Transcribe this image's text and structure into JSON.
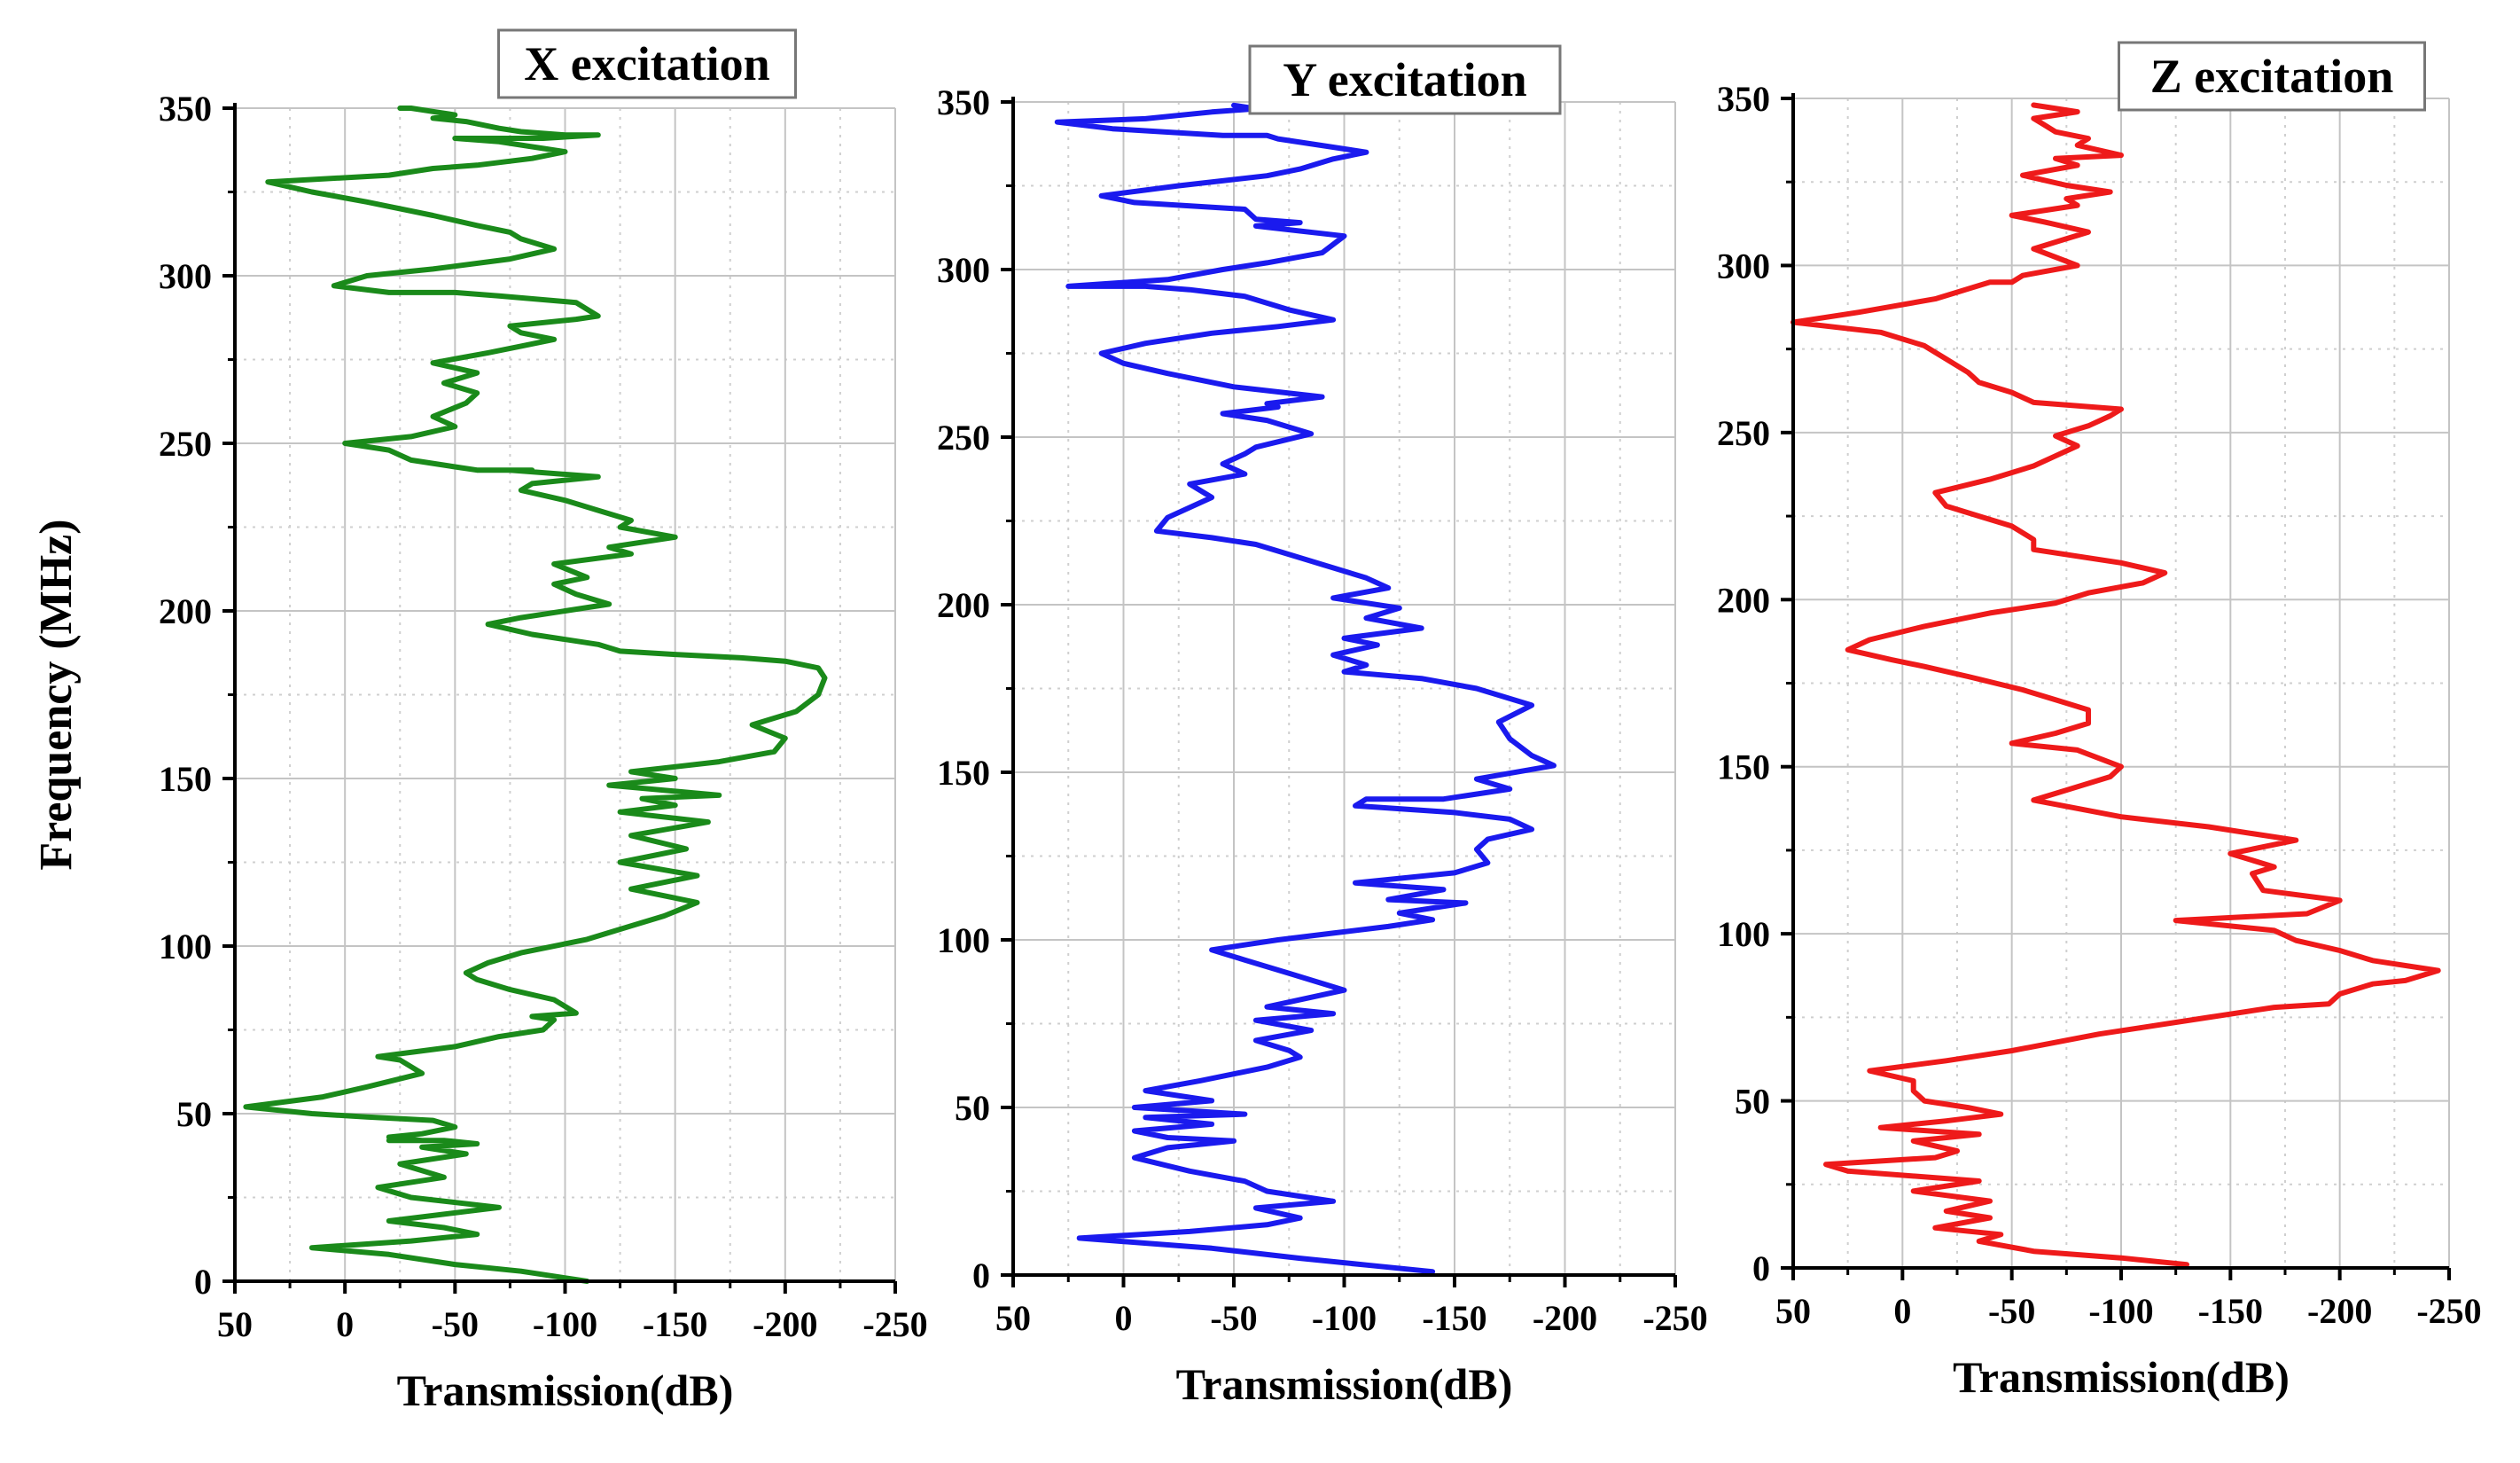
{
  "figure": {
    "ylabel": "Frequency (MHz)"
  },
  "chart_data": [
    {
      "type": "line",
      "title": "X excitation",
      "xlabel": "Transmission(dB)",
      "ylabel": "Frequency (MHz)",
      "color": "#1a8a1a",
      "xlim": [
        50,
        -250
      ],
      "ylim": [
        0,
        350
      ],
      "xticks": [
        50,
        0,
        -50,
        -100,
        -150,
        -200,
        -250
      ],
      "yticks": [
        0,
        50,
        100,
        150,
        200,
        250,
        300,
        350
      ],
      "grid": true,
      "series": [
        {
          "name": "X excitation",
          "x": [
            -110,
            -80,
            -50,
            -20,
            15,
            -30,
            -60,
            -45,
            -20,
            -70,
            -30,
            -15,
            -45,
            -25,
            -55,
            -35,
            -60,
            -45,
            -20,
            -35,
            -20,
            -35,
            -50,
            -40,
            -10,
            15,
            45,
            10,
            -10,
            -35,
            -25,
            -15,
            -50,
            -70,
            -90,
            -95,
            -85,
            -105,
            -95,
            -75,
            -60,
            -55,
            -65,
            -80,
            -110,
            -130,
            -145,
            -160,
            -130,
            -160,
            -125,
            -155,
            -130,
            -165,
            -125,
            -150,
            -135,
            -170,
            -120,
            -150,
            -130,
            -170,
            -195,
            -200,
            -185,
            -205,
            -215,
            -218,
            -215,
            -200,
            -180,
            -150,
            -125,
            -115,
            -85,
            -65,
            -80,
            -100,
            -120,
            -105,
            -95,
            -110,
            -95,
            -130,
            -120,
            -150,
            -125,
            -130,
            -115,
            -100,
            -80,
            -85,
            -115,
            -75,
            -85,
            -60,
            -50,
            -30,
            -20,
            0,
            -30,
            -50,
            -40,
            -55,
            -60,
            -45,
            -60,
            -40,
            -65,
            -80,
            -95,
            -80,
            -75,
            -105,
            -115,
            -105,
            -70,
            -50,
            -40,
            -20,
            5,
            -10,
            -40,
            -75,
            -95,
            -80,
            -75,
            -60,
            -40,
            -10,
            15,
            35,
            -20,
            -40,
            -60,
            -85,
            -100,
            -90,
            -70,
            -50,
            -80,
            -90,
            -115,
            -100,
            -80,
            -70,
            -55,
            -40,
            -50,
            -40,
            -30,
            -25
          ],
          "y": [
            0,
            3,
            5,
            8,
            10,
            12,
            14,
            16,
            18,
            22,
            25,
            28,
            31,
            35,
            38,
            40,
            41,
            42,
            42,
            42,
            43,
            44,
            46,
            48,
            49,
            50,
            52,
            55,
            58,
            62,
            66,
            67,
            70,
            73,
            75,
            78,
            79,
            80,
            84,
            87,
            90,
            92,
            95,
            98,
            102,
            106,
            109,
            113,
            117,
            121,
            125,
            129,
            133,
            137,
            140,
            142,
            144,
            145,
            148,
            150,
            152,
            155,
            158,
            162,
            166,
            170,
            175,
            180,
            183,
            185,
            186,
            187,
            188,
            190,
            193,
            196,
            198,
            200,
            202,
            205,
            208,
            210,
            214,
            217,
            219,
            222,
            225,
            227,
            230,
            233,
            236,
            238,
            240,
            242,
            242,
            242,
            243,
            245,
            248,
            250,
            252,
            255,
            258,
            262,
            265,
            268,
            271,
            274,
            277,
            279,
            281,
            283,
            285,
            287,
            288,
            292,
            294,
            295,
            295,
            295,
            297,
            300,
            302,
            305,
            308,
            311,
            313,
            315,
            318,
            322,
            325,
            328,
            330,
            332,
            333,
            335,
            337,
            338,
            340,
            341,
            341,
            341,
            342,
            342,
            343,
            344,
            346,
            347,
            348,
            349,
            350,
            350
          ]
        }
      ]
    },
    {
      "type": "line",
      "title": "Y excitation",
      "xlabel": "Transmission(dB)",
      "ylabel": "Frequency (MHz)",
      "color": "#1a1aee",
      "xlim": [
        50,
        -250
      ],
      "ylim": [
        0,
        350
      ],
      "xticks": [
        50,
        0,
        -50,
        -100,
        -150,
        -200,
        -250
      ],
      "yticks": [
        0,
        50,
        100,
        150,
        200,
        250,
        300,
        350
      ],
      "grid": true,
      "series": [
        {
          "name": "Y excitation",
          "x": [
            -140,
            -110,
            -80,
            -40,
            20,
            -30,
            -65,
            -80,
            -60,
            -95,
            -65,
            -55,
            -30,
            -5,
            -20,
            -50,
            -20,
            -5,
            -40,
            -10,
            -55,
            -5,
            -40,
            -10,
            -35,
            -65,
            -80,
            -75,
            -60,
            -85,
            -60,
            -95,
            -65,
            -100,
            -75,
            -55,
            -45,
            -40,
            -70,
            -95,
            -120,
            -140,
            -125,
            -155,
            -120,
            -145,
            -105,
            -150,
            -165,
            -160,
            -165,
            -185,
            -175,
            -150,
            -105,
            -110,
            -145,
            -175,
            -160,
            -195,
            -185,
            -175,
            -170,
            -185,
            -160,
            -135,
            -100,
            -110,
            -95,
            -115,
            -100,
            -135,
            -110,
            -125,
            -95,
            -120,
            -110,
            -90,
            -70,
            -60,
            -40,
            -15,
            -20,
            -40,
            -30,
            -55,
            -45,
            -55,
            -60,
            -85,
            -65,
            -45,
            -70,
            -65,
            -90,
            -50,
            -20,
            0,
            10,
            -10,
            -40,
            -70,
            -95,
            -75,
            -55,
            -30,
            -10,
            25,
            -20,
            -45,
            -65,
            -90,
            -100,
            -60,
            -80,
            -60,
            -55,
            -5,
            10,
            -25,
            -65,
            -80,
            -95,
            -110,
            -90,
            -70,
            -65,
            -45,
            -20,
            5,
            30,
            -10,
            -40,
            -60,
            -50
          ],
          "y": [
            1,
            3,
            5,
            8,
            11,
            13,
            15,
            17,
            20,
            22,
            25,
            28,
            31,
            35,
            38,
            40,
            41,
            43,
            45,
            47,
            48,
            50,
            52,
            55,
            58,
            62,
            65,
            67,
            70,
            73,
            76,
            78,
            80,
            85,
            90,
            94,
            96,
            97,
            100,
            102,
            104,
            106,
            108,
            111,
            112,
            115,
            117,
            120,
            123,
            127,
            130,
            133,
            136,
            138,
            140,
            142,
            142,
            145,
            148,
            152,
            155,
            160,
            165,
            170,
            175,
            178,
            180,
            182,
            185,
            188,
            190,
            193,
            196,
            199,
            202,
            205,
            208,
            212,
            216,
            218,
            220,
            222,
            226,
            232,
            236,
            239,
            242,
            245,
            247,
            251,
            255,
            257,
            259,
            260,
            262,
            265,
            269,
            272,
            275,
            278,
            281,
            283,
            285,
            288,
            292,
            294,
            295,
            295,
            297,
            300,
            302,
            305,
            310,
            313,
            314,
            315,
            318,
            320,
            322,
            325,
            328,
            330,
            333,
            335,
            337,
            339,
            340,
            340,
            341,
            342,
            344,
            345,
            347,
            348,
            349
          ]
        }
      ]
    },
    {
      "type": "line",
      "title": "Z excitation",
      "xlabel": "Transmission(dB)",
      "ylabel": "Frequency (MHz)",
      "color": "#ee1a1a",
      "xlim": [
        50,
        -250
      ],
      "ylim": [
        0,
        350
      ],
      "xticks": [
        50,
        0,
        -50,
        -100,
        -150,
        -200,
        -250
      ],
      "yticks": [
        0,
        50,
        100,
        150,
        200,
        250,
        300,
        350
      ],
      "grid": true,
      "series": [
        {
          "name": "Z excitation",
          "x": [
            -130,
            -100,
            -60,
            -35,
            -45,
            -15,
            -40,
            -20,
            -40,
            -5,
            -35,
            25,
            35,
            -15,
            -25,
            -5,
            -35,
            10,
            -20,
            -45,
            -30,
            -10,
            -5,
            -5,
            15,
            -20,
            -50,
            -90,
            -110,
            -140,
            -170,
            -195,
            -200,
            -215,
            -230,
            -245,
            -215,
            -200,
            -180,
            -170,
            -125,
            -185,
            -200,
            -165,
            -160,
            -170,
            -150,
            -180,
            -160,
            -140,
            -100,
            -60,
            -75,
            -95,
            -100,
            -80,
            -50,
            -70,
            -85,
            -85,
            -70,
            -55,
            -30,
            -10,
            5,
            25,
            15,
            -10,
            -40,
            -70,
            -85,
            -110,
            -120,
            -100,
            -60,
            -60,
            -50,
            -35,
            -20,
            -15,
            -40,
            -60,
            -70,
            -80,
            -70,
            -85,
            -95,
            -100,
            -60,
            -50,
            -35,
            -30,
            -20,
            -10,
            10,
            50,
            20,
            -15,
            -40,
            -50,
            -55,
            -80,
            -60,
            -75,
            -85,
            -65,
            -50,
            -80,
            -75,
            -95,
            -75,
            -55,
            -80,
            -70,
            -100,
            -80,
            -85,
            -70,
            -65,
            -60,
            -80,
            -60
          ],
          "y": [
            1,
            3,
            5,
            8,
            10,
            12,
            15,
            17,
            20,
            23,
            26,
            29,
            31,
            33,
            35,
            38,
            40,
            42,
            44,
            46,
            48,
            50,
            53,
            56,
            59,
            62,
            65,
            70,
            72,
            75,
            78,
            79,
            82,
            85,
            86,
            89,
            92,
            95,
            98,
            101,
            104,
            106,
            110,
            113,
            118,
            120,
            124,
            128,
            130,
            132,
            135,
            140,
            143,
            147,
            150,
            155,
            157,
            160,
            163,
            167,
            170,
            173,
            177,
            180,
            182,
            185,
            188,
            192,
            196,
            199,
            202,
            205,
            208,
            211,
            215,
            218,
            222,
            225,
            228,
            232,
            236,
            240,
            243,
            246,
            249,
            252,
            255,
            257,
            259,
            262,
            265,
            268,
            272,
            276,
            280,
            283,
            286,
            290,
            295,
            295,
            297,
            300,
            305,
            308,
            310,
            313,
            315,
            318,
            320,
            322,
            324,
            327,
            330,
            332,
            333,
            336,
            338,
            340,
            342,
            344,
            346,
            348
          ]
        }
      ]
    }
  ]
}
